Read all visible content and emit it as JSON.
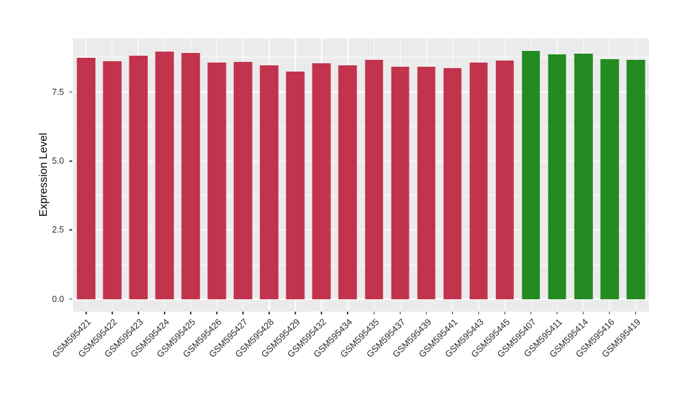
{
  "page": {
    "figure_background": "#FFFFFF"
  },
  "chart_data": {
    "type": "bar",
    "title": "",
    "xlabel": "",
    "ylabel": "Expression Level",
    "categories": [
      "GSM595421",
      "GSM595422",
      "GSM595423",
      "GSM595424",
      "GSM595425",
      "GSM595426",
      "GSM595427",
      "GSM595428",
      "GSM595429",
      "GSM595432",
      "GSM595434",
      "GSM595435",
      "GSM595437",
      "GSM595439",
      "GSM595441",
      "GSM595443",
      "GSM595445",
      "GSM595407",
      "GSM595411",
      "GSM595414",
      "GSM595416",
      "GSM595419"
    ],
    "values": [
      8.73,
      8.61,
      8.82,
      8.97,
      8.9,
      8.56,
      8.59,
      8.45,
      8.23,
      8.54,
      8.45,
      8.65,
      8.4,
      8.4,
      8.37,
      8.55,
      8.64,
      8.98,
      8.85,
      8.88,
      8.69,
      8.66
    ],
    "bar_colors": [
      "#C2334D",
      "#C2334D",
      "#C2334D",
      "#C2334D",
      "#C2334D",
      "#C2334D",
      "#C2334D",
      "#C2334D",
      "#C2334D",
      "#C2334D",
      "#C2334D",
      "#C2334D",
      "#C2334D",
      "#C2334D",
      "#C2334D",
      "#C2334D",
      "#C2334D",
      "#238B21",
      "#238B21",
      "#238B21",
      "#238B21",
      "#238B21"
    ],
    "palette": {
      "crimson": "#C2334D",
      "green": "#238B21"
    },
    "bar_width_fraction": 0.7,
    "x_label_angle": 45,
    "legend": "none",
    "grid": true,
    "y_axis": {
      "major_ticks": [
        0.0,
        2.5,
        5.0,
        7.5
      ],
      "minor_ticks": [
        1.25,
        3.75,
        6.25,
        8.75
      ],
      "tick_labels": [
        "0.0",
        "2.5",
        "5.0",
        "7.5"
      ],
      "panel_range": [
        -0.45,
        9.43
      ]
    },
    "style": {
      "panel_background": "#EBEBEB",
      "grid_color": "#FFFFFF",
      "tick_color": "#333333",
      "axis_text_color": "#2B2B2B"
    }
  }
}
